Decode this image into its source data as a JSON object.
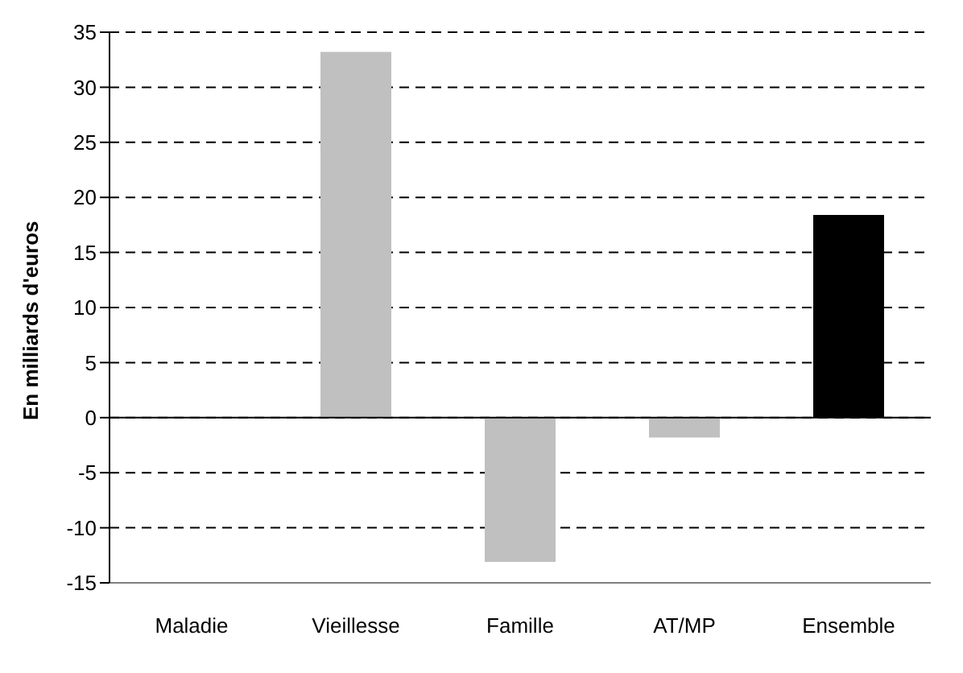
{
  "chart_data": {
    "type": "bar",
    "ylabel": "En milliards d'euros",
    "categories": [
      "Maladie",
      "Vieillesse",
      "Famille",
      "AT/MP",
      "Ensemble"
    ],
    "values": [
      0,
      33.2,
      -13.1,
      -1.8,
      18.4
    ],
    "colors": [
      "#c0c0c0",
      "#c0c0c0",
      "#c0c0c0",
      "#c0c0c0",
      "#000000"
    ],
    "ylim": [
      -15,
      35
    ],
    "yticks": [
      -15,
      -10,
      -5,
      0,
      5,
      10,
      15,
      20,
      25,
      30,
      35
    ],
    "grid": "y"
  }
}
